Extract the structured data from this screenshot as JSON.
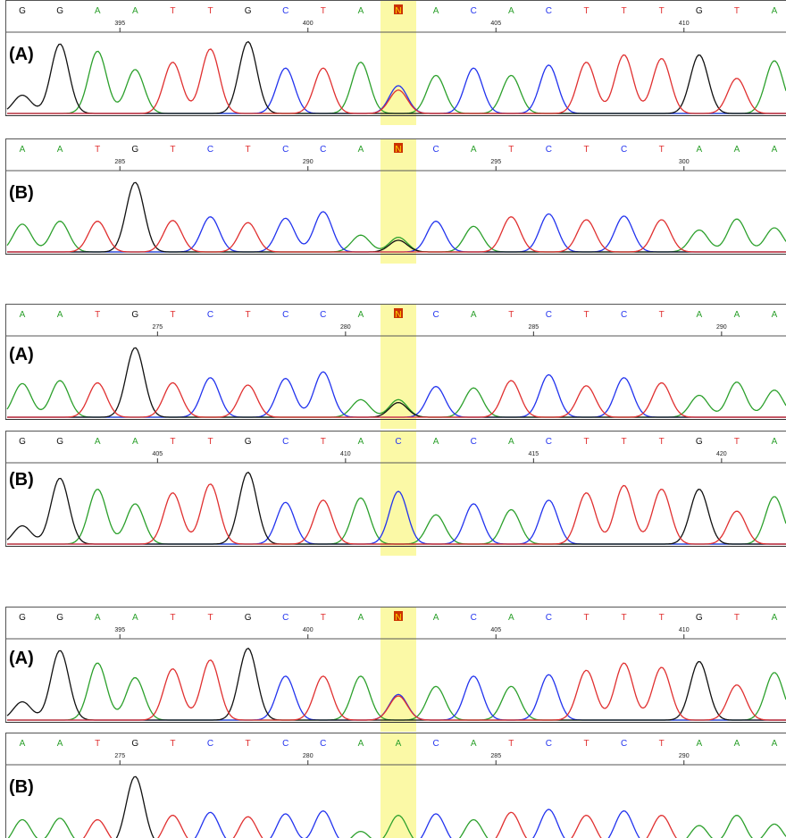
{
  "colors": {
    "A": "#2ca02c",
    "C": "#2233ee",
    "G": "#111111",
    "T": "#e03030",
    "N": "#cc3300",
    "highlight": "#fbf9a6",
    "frame": "#555555"
  },
  "panels": [
    {
      "label": "(A)",
      "bases": [
        "G",
        "G",
        "A",
        "A",
        "T",
        "T",
        "G",
        "C",
        "T",
        "A",
        "N",
        "A",
        "C",
        "A",
        "C",
        "T",
        "T",
        "T",
        "G",
        "T",
        "A"
      ],
      "ticks": [
        "395",
        "400",
        "405",
        "410"
      ],
      "tick_bases": [
        3,
        8,
        13,
        18
      ],
      "highlight_base": 10,
      "peaks": [
        [
          [
            "G",
            0.25
          ]
        ],
        [
          [
            "G",
            0.95
          ]
        ],
        [
          [
            "A",
            0.85
          ]
        ],
        [
          [
            "A",
            0.6
          ]
        ],
        [
          [
            "T",
            0.7
          ]
        ],
        [
          [
            "T",
            0.88
          ]
        ],
        [
          [
            "G",
            0.98
          ]
        ],
        [
          [
            "C",
            0.62
          ]
        ],
        [
          [
            "T",
            0.62
          ]
        ],
        [
          [
            "A",
            0.7
          ]
        ],
        [
          [
            "C",
            0.38
          ],
          [
            "T",
            0.32
          ]
        ],
        [
          [
            "A",
            0.52
          ]
        ],
        [
          [
            "C",
            0.62
          ]
        ],
        [
          [
            "A",
            0.52
          ]
        ],
        [
          [
            "C",
            0.66
          ]
        ],
        [
          [
            "T",
            0.7
          ]
        ],
        [
          [
            "T",
            0.8
          ]
        ],
        [
          [
            "T",
            0.75
          ]
        ],
        [
          [
            "G",
            0.8
          ]
        ],
        [
          [
            "T",
            0.48
          ]
        ],
        [
          [
            "A",
            0.72
          ]
        ]
      ]
    },
    {
      "label": "(B)",
      "bases": [
        "A",
        "A",
        "T",
        "G",
        "T",
        "C",
        "T",
        "C",
        "C",
        "A",
        "N",
        "C",
        "A",
        "T",
        "C",
        "T",
        "C",
        "T",
        "A",
        "A",
        "A"
      ],
      "ticks": [
        "285",
        "290",
        "295",
        "300"
      ],
      "tick_bases": [
        3,
        8,
        13,
        18
      ],
      "highlight_base": 10,
      "peaks": [
        [
          [
            "A",
            0.38
          ]
        ],
        [
          [
            "A",
            0.42
          ]
        ],
        [
          [
            "T",
            0.42
          ]
        ],
        [
          [
            "G",
            0.95
          ]
        ],
        [
          [
            "T",
            0.43
          ]
        ],
        [
          [
            "C",
            0.48
          ]
        ],
        [
          [
            "T",
            0.4
          ]
        ],
        [
          [
            "C",
            0.46
          ]
        ],
        [
          [
            "C",
            0.55
          ]
        ],
        [
          [
            "A",
            0.23
          ]
        ],
        [
          [
            "A",
            0.2
          ],
          [
            "G",
            0.16
          ]
        ],
        [
          [
            "C",
            0.42
          ]
        ],
        [
          [
            "A",
            0.35
          ]
        ],
        [
          [
            "T",
            0.48
          ]
        ],
        [
          [
            "C",
            0.52
          ]
        ],
        [
          [
            "T",
            0.44
          ]
        ],
        [
          [
            "C",
            0.49
          ]
        ],
        [
          [
            "T",
            0.44
          ]
        ],
        [
          [
            "A",
            0.3
          ]
        ],
        [
          [
            "A",
            0.45
          ]
        ],
        [
          [
            "A",
            0.33
          ]
        ]
      ]
    },
    {
      "label": "(A)",
      "bases": [
        "A",
        "A",
        "T",
        "G",
        "T",
        "C",
        "T",
        "C",
        "C",
        "A",
        "N",
        "C",
        "A",
        "T",
        "C",
        "T",
        "C",
        "T",
        "A",
        "A",
        "A"
      ],
      "ticks": [
        "275",
        "280",
        "285",
        "290"
      ],
      "tick_bases": [
        4,
        9,
        14,
        19
      ],
      "highlight_base": 10,
      "peaks": [
        [
          [
            "A",
            0.46
          ]
        ],
        [
          [
            "A",
            0.5
          ]
        ],
        [
          [
            "T",
            0.47
          ]
        ],
        [
          [
            "G",
            0.95
          ]
        ],
        [
          [
            "T",
            0.47
          ]
        ],
        [
          [
            "C",
            0.54
          ]
        ],
        [
          [
            "T",
            0.44
          ]
        ],
        [
          [
            "C",
            0.53
          ]
        ],
        [
          [
            "C",
            0.62
          ]
        ],
        [
          [
            "A",
            0.24
          ]
        ],
        [
          [
            "A",
            0.24
          ],
          [
            "G",
            0.2
          ]
        ],
        [
          [
            "C",
            0.42
          ]
        ],
        [
          [
            "A",
            0.4
          ]
        ],
        [
          [
            "T",
            0.5
          ]
        ],
        [
          [
            "C",
            0.58
          ]
        ],
        [
          [
            "T",
            0.43
          ]
        ],
        [
          [
            "C",
            0.54
          ]
        ],
        [
          [
            "T",
            0.47
          ]
        ],
        [
          [
            "A",
            0.3
          ]
        ],
        [
          [
            "A",
            0.48
          ]
        ],
        [
          [
            "A",
            0.37
          ]
        ]
      ]
    },
    {
      "label": "(B)",
      "bases": [
        "G",
        "G",
        "A",
        "A",
        "T",
        "T",
        "G",
        "C",
        "T",
        "A",
        "C",
        "A",
        "C",
        "A",
        "C",
        "T",
        "T",
        "T",
        "G",
        "T",
        "A"
      ],
      "ticks": [
        "405",
        "410",
        "415",
        "420"
      ],
      "tick_bases": [
        4,
        9,
        14,
        19
      ],
      "highlight_base": 10,
      "peaks": [
        [
          [
            "G",
            0.25
          ]
        ],
        [
          [
            "G",
            0.9
          ]
        ],
        [
          [
            "A",
            0.75
          ]
        ],
        [
          [
            "A",
            0.55
          ]
        ],
        [
          [
            "T",
            0.7
          ]
        ],
        [
          [
            "T",
            0.82
          ]
        ],
        [
          [
            "G",
            0.98
          ]
        ],
        [
          [
            "C",
            0.57
          ]
        ],
        [
          [
            "T",
            0.6
          ]
        ],
        [
          [
            "A",
            0.63
          ]
        ],
        [
          [
            "C",
            0.72
          ]
        ],
        [
          [
            "A",
            0.4
          ]
        ],
        [
          [
            "C",
            0.55
          ]
        ],
        [
          [
            "A",
            0.47
          ]
        ],
        [
          [
            "C",
            0.6
          ]
        ],
        [
          [
            "T",
            0.7
          ]
        ],
        [
          [
            "T",
            0.8
          ]
        ],
        [
          [
            "T",
            0.75
          ]
        ],
        [
          [
            "G",
            0.75
          ]
        ],
        [
          [
            "T",
            0.45
          ]
        ],
        [
          [
            "A",
            0.65
          ]
        ]
      ]
    },
    {
      "label": "(A)",
      "bases": [
        "G",
        "G",
        "A",
        "A",
        "T",
        "T",
        "G",
        "C",
        "T",
        "A",
        "N",
        "A",
        "C",
        "A",
        "C",
        "T",
        "T",
        "T",
        "G",
        "T",
        "A"
      ],
      "ticks": [
        "395",
        "400",
        "405",
        "410"
      ],
      "tick_bases": [
        3,
        8,
        13,
        18
      ],
      "highlight_base": 10,
      "peaks": [
        [
          [
            "G",
            0.25
          ]
        ],
        [
          [
            "G",
            0.95
          ]
        ],
        [
          [
            "A",
            0.78
          ]
        ],
        [
          [
            "A",
            0.58
          ]
        ],
        [
          [
            "T",
            0.7
          ]
        ],
        [
          [
            "T",
            0.82
          ]
        ],
        [
          [
            "G",
            0.98
          ]
        ],
        [
          [
            "C",
            0.6
          ]
        ],
        [
          [
            "T",
            0.6
          ]
        ],
        [
          [
            "A",
            0.6
          ]
        ],
        [
          [
            "C",
            0.35
          ],
          [
            "T",
            0.33
          ]
        ],
        [
          [
            "A",
            0.46
          ]
        ],
        [
          [
            "C",
            0.6
          ]
        ],
        [
          [
            "A",
            0.46
          ]
        ],
        [
          [
            "C",
            0.62
          ]
        ],
        [
          [
            "T",
            0.68
          ]
        ],
        [
          [
            "T",
            0.78
          ]
        ],
        [
          [
            "T",
            0.72
          ]
        ],
        [
          [
            "G",
            0.8
          ]
        ],
        [
          [
            "T",
            0.48
          ]
        ],
        [
          [
            "A",
            0.65
          ]
        ]
      ]
    },
    {
      "label": "(B)",
      "bases": [
        "A",
        "A",
        "T",
        "G",
        "T",
        "C",
        "T",
        "C",
        "C",
        "A",
        "A",
        "C",
        "A",
        "T",
        "C",
        "T",
        "C",
        "T",
        "A",
        "A",
        "A"
      ],
      "ticks": [
        "275",
        "280",
        "285",
        "290"
      ],
      "tick_bases": [
        3,
        8,
        13,
        18
      ],
      "highlight_base": 10,
      "peaks": [
        [
          [
            "A",
            0.36
          ]
        ],
        [
          [
            "A",
            0.38
          ]
        ],
        [
          [
            "T",
            0.36
          ]
        ],
        [
          [
            "G",
            0.95
          ]
        ],
        [
          [
            "T",
            0.42
          ]
        ],
        [
          [
            "C",
            0.46
          ]
        ],
        [
          [
            "T",
            0.4
          ]
        ],
        [
          [
            "C",
            0.44
          ]
        ],
        [
          [
            "C",
            0.48
          ]
        ],
        [
          [
            "A",
            0.2
          ]
        ],
        [
          [
            "A",
            0.42
          ]
        ],
        [
          [
            "C",
            0.44
          ]
        ],
        [
          [
            "A",
            0.36
          ]
        ],
        [
          [
            "T",
            0.46
          ]
        ],
        [
          [
            "C",
            0.5
          ]
        ],
        [
          [
            "T",
            0.42
          ]
        ],
        [
          [
            "C",
            0.48
          ]
        ],
        [
          [
            "T",
            0.42
          ]
        ],
        [
          [
            "A",
            0.28
          ]
        ],
        [
          [
            "A",
            0.42
          ]
        ],
        [
          [
            "A",
            0.3
          ]
        ]
      ]
    }
  ]
}
